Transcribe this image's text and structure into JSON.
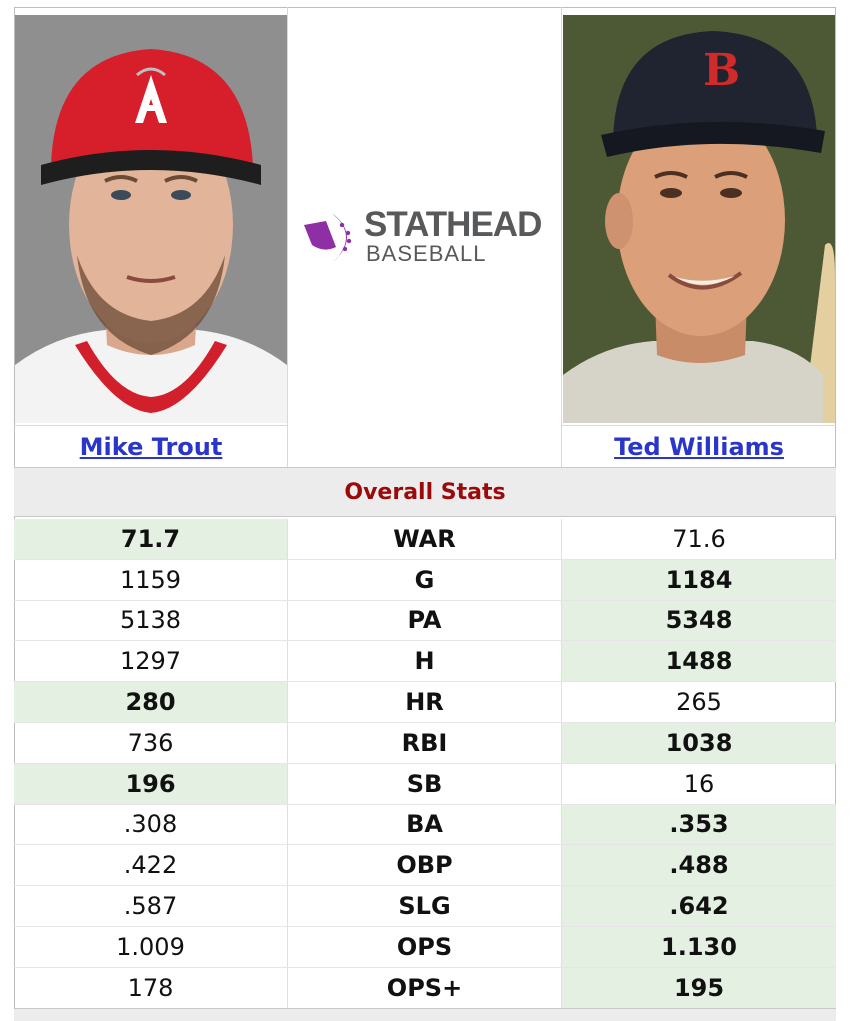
{
  "players": {
    "left": {
      "name": "Mike Trout"
    },
    "right": {
      "name": "Ted Williams"
    }
  },
  "logo": {
    "line1": "STATHEAD",
    "line2": "BASEBALL",
    "accent": "#8e2fa6"
  },
  "section": {
    "title": "Overall Stats"
  },
  "colors": {
    "winner_bg": "#e4f0e2",
    "link": "#2a36c9",
    "section_text": "#9a0a0a"
  },
  "stats": [
    {
      "label": "WAR",
      "left": "71.7",
      "right": "71.6",
      "winner": "left"
    },
    {
      "label": "G",
      "left": "1159",
      "right": "1184",
      "winner": "right"
    },
    {
      "label": "PA",
      "left": "5138",
      "right": "5348",
      "winner": "right"
    },
    {
      "label": "H",
      "left": "1297",
      "right": "1488",
      "winner": "right"
    },
    {
      "label": "HR",
      "left": "280",
      "right": "265",
      "winner": "left"
    },
    {
      "label": "RBI",
      "left": "736",
      "right": "1038",
      "winner": "right"
    },
    {
      "label": "SB",
      "left": "196",
      "right": "16",
      "winner": "left"
    },
    {
      "label": "BA",
      "left": ".308",
      "right": ".353",
      "winner": "right"
    },
    {
      "label": "OBP",
      "left": ".422",
      "right": ".488",
      "winner": "right"
    },
    {
      "label": "SLG",
      "left": ".587",
      "right": ".642",
      "winner": "right"
    },
    {
      "label": "OPS",
      "left": "1.009",
      "right": "1.130",
      "winner": "right"
    },
    {
      "label": "OPS+",
      "left": "178",
      "right": "195",
      "winner": "right"
    }
  ]
}
